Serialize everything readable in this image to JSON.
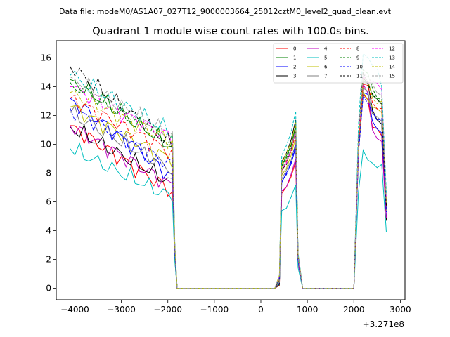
{
  "figure": {
    "suptitle": "Data file: modeM0/AS1A07_027T12_9000003664_25012cztM0_level2_quad_clean.evt"
  },
  "chart_data": {
    "type": "line",
    "title": "Quadrant 1 module wise count rates with 100.0s bins.",
    "xlabel": "",
    "ylabel": "",
    "x_offset_label": "+3.271e8",
    "xlim": [
      -4400,
      3100
    ],
    "ylim": [
      -0.8,
      17.2
    ],
    "x_ticks": [
      -4000,
      -3000,
      -2000,
      -1000,
      0,
      1000,
      2000,
      3000
    ],
    "x_tick_labels": [
      "−4000",
      "−3000",
      "−2000",
      "−1000",
      "0",
      "1000",
      "2000",
      "3000"
    ],
    "y_ticks": [
      0,
      2,
      4,
      6,
      8,
      10,
      12,
      14,
      16
    ],
    "y_tick_labels": [
      "0",
      "2",
      "4",
      "6",
      "8",
      "10",
      "12",
      "14",
      "16"
    ],
    "grid": false,
    "legend_position": "top-right",
    "segments": [
      {
        "start": -4100,
        "end": -1800
      },
      {
        "start": 400,
        "end": 800
      },
      {
        "start": 2000,
        "end": 2700
      }
    ],
    "bin_width": 100,
    "series": [
      {
        "name": "0",
        "color": "#ff0000",
        "style": "solid",
        "start": 11.3,
        "pre_end": 6.7,
        "p2": 8.8,
        "p3": [
          13.5,
          11.2,
          10.6,
          4.8
        ]
      },
      {
        "name": "1",
        "color": "#008000",
        "style": "solid",
        "start": 14.5,
        "pre_end": 9.8,
        "p2": 11.3,
        "p3": [
          14.4,
          13.4,
          12.8,
          5.5
        ]
      },
      {
        "name": "2",
        "color": "#0000ff",
        "style": "solid",
        "start": 13.2,
        "pre_end": 7.7,
        "p2": 9.8,
        "p3": [
          13.6,
          11.6,
          10.8,
          5.0
        ]
      },
      {
        "name": "3",
        "color": "#000000",
        "style": "solid",
        "start": 11.2,
        "pre_end": 7.3,
        "p2": 11.7,
        "p3": [
          14.6,
          12.4,
          11.4,
          4.7
        ]
      },
      {
        "name": "4",
        "color": "#bf00bf",
        "style": "solid",
        "start": 11.3,
        "pre_end": 7.1,
        "p2": 9.0,
        "p3": [
          14.2,
          11.0,
          10.2,
          4.9
        ]
      },
      {
        "name": "5",
        "color": "#00bfbf",
        "style": "solid",
        "start": 9.7,
        "pre_end": 6.3,
        "p2": 7.2,
        "p3": [
          9.6,
          8.7,
          8.6,
          3.9
        ]
      },
      {
        "name": "6",
        "color": "#bfbf00",
        "style": "solid",
        "start": 12.6,
        "pre_end": 8.9,
        "p2": 10.5,
        "p3": [
          13.6,
          12.6,
          12.2,
          5.8
        ]
      },
      {
        "name": "7",
        "color": "#808080",
        "style": "solid",
        "start": 12.2,
        "pre_end": 8.2,
        "p2": 10.1,
        "p3": [
          13.9,
          12.1,
          11.6,
          5.4
        ]
      },
      {
        "name": "8",
        "color": "#ff0000",
        "style": "dashed",
        "start": 13.2,
        "pre_end": 9.4,
        "p2": 10.8,
        "p3": [
          14.2,
          12.9,
          12.5,
          5.6
        ]
      },
      {
        "name": "9",
        "color": "#008000",
        "style": "dashed",
        "start": 14.3,
        "pre_end": 10.1,
        "p2": 11.2,
        "p3": [
          15.2,
          13.9,
          13.1,
          6.1
        ]
      },
      {
        "name": "10",
        "color": "#0000ff",
        "style": "dashed",
        "start": 12.5,
        "pre_end": 8.5,
        "p2": 10.0,
        "p3": [
          13.4,
          12.3,
          11.8,
          5.3
        ]
      },
      {
        "name": "11",
        "color": "#000000",
        "style": "dashed",
        "start": 15.4,
        "pre_end": 9.9,
        "p2": 11.0,
        "p3": [
          15.0,
          13.5,
          12.8,
          5.7
        ]
      },
      {
        "name": "12",
        "color": "#ff00ff",
        "style": "dashed",
        "start": 14.0,
        "pre_end": 10.4,
        "p2": 11.0,
        "p3": [
          14.8,
          14.4,
          13.8,
          6.2
        ]
      },
      {
        "name": "13",
        "color": "#00bfbf",
        "style": "dashed",
        "start": 14.8,
        "pre_end": 10.8,
        "p2": 12.3,
        "p3": [
          16.3,
          15.5,
          14.0,
          6.6
        ]
      },
      {
        "name": "14",
        "color": "#bfbf00",
        "style": "dashed",
        "start": 13.6,
        "pre_end": 10.2,
        "p2": 11.5,
        "p3": [
          14.6,
          13.2,
          13.0,
          6.0
        ]
      },
      {
        "name": "15",
        "color": "#a0a0a0",
        "style": "dashed",
        "start": 14.7,
        "pre_end": 10.6,
        "p2": 11.0,
        "p3": [
          14.9,
          14.2,
          13.4,
          6.3
        ]
      }
    ]
  }
}
